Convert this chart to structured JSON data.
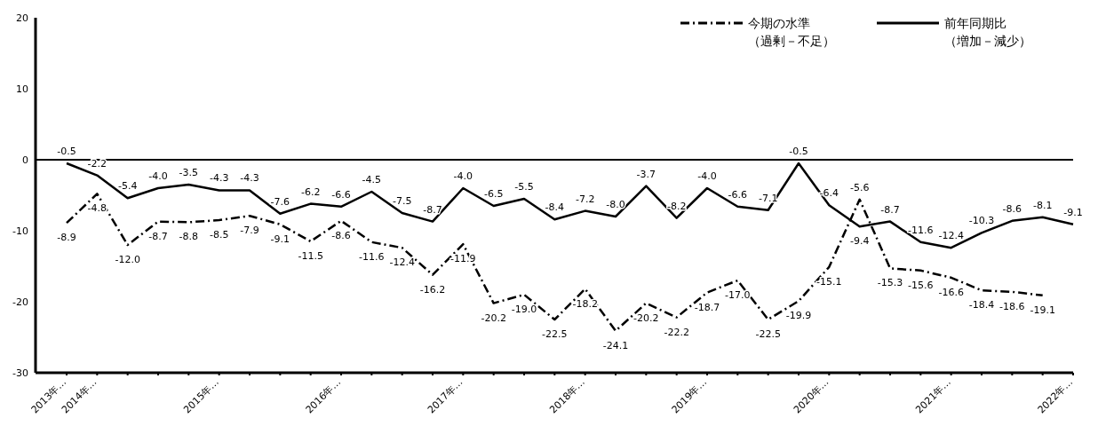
{
  "chart_data": {
    "type": "line",
    "categories": [
      "2013年…",
      "2014年…",
      null,
      null,
      null,
      "2015年…",
      null,
      null,
      null,
      "2016年…",
      null,
      null,
      null,
      "2017年…",
      null,
      null,
      null,
      "2018年…",
      null,
      null,
      null,
      "2019年…",
      null,
      null,
      null,
      "2020年…",
      null,
      null,
      null,
      "2021年…",
      null,
      null,
      null,
      "2022年…"
    ],
    "series": [
      {
        "name": "今期の水準（過剰－不足）",
        "color": "#000000",
        "line_style": "dashed",
        "values": [
          -8.9,
          -4.8,
          -12.0,
          -8.7,
          -8.8,
          -8.5,
          -7.9,
          -9.1,
          -11.5,
          -8.6,
          -11.6,
          -12.4,
          -16.2,
          -11.9,
          -20.2,
          -19.0,
          -22.5,
          -18.2,
          -24.1,
          -20.2,
          -22.2,
          -18.7,
          -17.0,
          -22.5,
          -19.9,
          -15.1,
          -5.6,
          -15.3,
          -15.6,
          -16.6,
          -18.4,
          -18.6,
          -19.1,
          null
        ],
        "value_labels": [
          "-8.9",
          "-4.8",
          "-12.0",
          "-8.7",
          "-8.8",
          "-8.5",
          "-7.9",
          "-9.1",
          "-11.5",
          "-8.6",
          "-11.6",
          "-12.4",
          "-16.2",
          "-11.9",
          "-20.2",
          "-19.0",
          "-22.5",
          "-18.2",
          "-24.1",
          "-20.2",
          "-22.2",
          "-18.7",
          "-17.0",
          "-22.5",
          "-19.9",
          "-15.1",
          "-5.6",
          "-15.3",
          "-15.6",
          "-16.6",
          "-18.4",
          "-18.6",
          "-19.1",
          null
        ]
      },
      {
        "name": "前年同期比（増加－減少）",
        "color": "#000000",
        "line_style": "solid",
        "values": [
          -0.5,
          -2.2,
          -5.4,
          -4.0,
          -3.5,
          -4.3,
          -4.3,
          -7.6,
          -6.2,
          -6.6,
          -4.5,
          -7.5,
          -8.7,
          -4.0,
          -6.5,
          -5.5,
          -8.4,
          -7.2,
          -8.0,
          -3.7,
          -8.2,
          -4.0,
          -6.6,
          -7.1,
          -0.5,
          -6.4,
          -9.4,
          -8.7,
          -11.6,
          -12.4,
          -10.3,
          -8.6,
          -8.1,
          -9.1
        ],
        "value_labels": [
          "-0.5",
          "-2.2",
          "-5.4",
          "-4.0",
          "-3.5",
          "-4.3",
          "-4.3",
          "-7.6",
          "-6.2",
          "-6.6",
          "-4.5",
          "-7.5",
          "-8.7",
          "-4.0",
          "-6.5",
          "-5.5",
          "-8.4",
          "-7.2",
          "-8.0",
          "-3.7",
          "-8.2",
          "-4.0",
          "-6.6",
          "-7.1",
          "-0.5",
          "-6.4",
          "-9.4",
          "-8.7",
          "-11.6",
          "-12.4",
          "-10.3",
          "-8.6",
          "-8.1",
          "-9.1"
        ]
      }
    ],
    "ylim": [
      -30,
      20
    ],
    "yticks": [
      -30,
      -20,
      -10,
      0,
      10,
      20
    ],
    "ref_lines": [
      {
        "axis": "y",
        "value": 0
      }
    ],
    "grid": false,
    "legend": "top right",
    "marker": "none"
  }
}
